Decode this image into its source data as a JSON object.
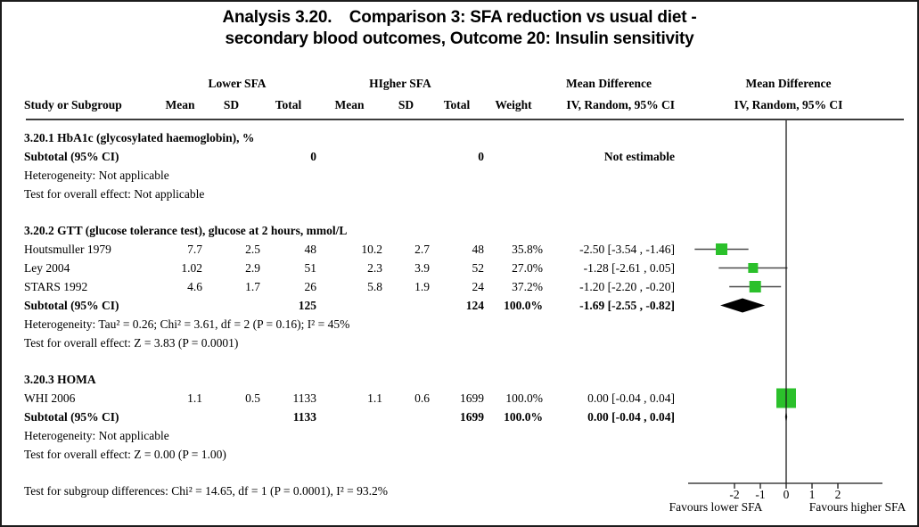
{
  "title": {
    "line1": "Analysis 3.20.   Comparison 3: SFA reduction vs usual diet -",
    "line2": "secondary blood outcomes, Outcome 20: Insulin sensitivity"
  },
  "header": {
    "group_lower": "Lower SFA",
    "group_higher": "HIgher SFA",
    "mean_diff_left": "Mean Difference",
    "mean_diff_right": "Mean Difference",
    "study": "Study or Subgroup",
    "mean1": "Mean",
    "sd1": "SD",
    "total1": "Total",
    "mean2": "Mean",
    "sd2": "SD",
    "total2": "Total",
    "weight": "Weight",
    "iv_left": "IV, Random, 95% CI",
    "iv_right": "IV, Random, 95% CI"
  },
  "table": {
    "rows": [
      {
        "type": "section",
        "text": "3.20.1 HbA1c (glycosylated haemoglobin), %"
      },
      {
        "type": "subtotal",
        "cells": [
          "Subtotal (95% CI)",
          "",
          "",
          "0",
          "",
          "",
          "0",
          "",
          "Not estimable"
        ]
      },
      {
        "type": "note",
        "text": "Heterogeneity: Not applicable"
      },
      {
        "type": "note",
        "text": "Test for overall effect: Not applicable"
      },
      {
        "type": "spacer"
      },
      {
        "type": "section",
        "text": "3.20.2 GTT (glucose tolerance test), glucose at 2 hours, mmol/L"
      },
      {
        "type": "study",
        "cells": [
          "Houtsmuller 1979",
          "7.7",
          "2.5",
          "48",
          "10.2",
          "2.7",
          "48",
          "35.8%",
          "-2.50 [-3.54 , -1.46]"
        ],
        "plot": {
          "kind": "square",
          "est": -2.5,
          "lo": -3.54,
          "hi": -1.46,
          "weight": 35.8
        }
      },
      {
        "type": "study",
        "cells": [
          "Ley 2004",
          "1.02",
          "2.9",
          "51",
          "2.3",
          "3.9",
          "52",
          "27.0%",
          "-1.28 [-2.61 , 0.05]"
        ],
        "plot": {
          "kind": "square",
          "est": -1.28,
          "lo": -2.61,
          "hi": 0.05,
          "weight": 27.0
        }
      },
      {
        "type": "study",
        "cells": [
          "STARS 1992",
          "4.6",
          "1.7",
          "26",
          "5.8",
          "1.9",
          "24",
          "37.2%",
          "-1.20 [-2.20 , -0.20]"
        ],
        "plot": {
          "kind": "square",
          "est": -1.2,
          "lo": -2.2,
          "hi": -0.2,
          "weight": 37.2
        }
      },
      {
        "type": "subtotal",
        "cells": [
          "Subtotal (95% CI)",
          "",
          "",
          "125",
          "",
          "",
          "124",
          "100.0%",
          "-1.69 [-2.55 , -0.82]"
        ],
        "plot": {
          "kind": "diamond",
          "est": -1.69,
          "lo": -2.55,
          "hi": -0.82
        }
      },
      {
        "type": "note",
        "text": "Heterogeneity: Tau² = 0.26; Chi² = 3.61, df = 2 (P = 0.16); I² = 45%"
      },
      {
        "type": "note",
        "text": "Test for overall effect: Z = 3.83 (P = 0.0001)"
      },
      {
        "type": "spacer"
      },
      {
        "type": "section",
        "text": "3.20.3 HOMA"
      },
      {
        "type": "study",
        "cells": [
          "WHI 2006",
          "1.1",
          "0.5",
          "1133",
          "1.1",
          "0.6",
          "1699",
          "100.0%",
          "0.00 [-0.04 , 0.04]"
        ],
        "plot": {
          "kind": "square",
          "est": 0.0,
          "lo": -0.04,
          "hi": 0.04,
          "weight": 100.0
        }
      },
      {
        "type": "subtotal",
        "cells": [
          "Subtotal (95% CI)",
          "",
          "",
          "1133",
          "",
          "",
          "1699",
          "100.0%",
          "0.00 [-0.04 , 0.04]"
        ],
        "plot": {
          "kind": "diamond",
          "est": 0.0,
          "lo": -0.04,
          "hi": 0.04
        }
      },
      {
        "type": "note",
        "text": "Heterogeneity: Not applicable"
      },
      {
        "type": "note",
        "text": "Test for overall effect: Z = 0.00 (P = 1.00)"
      },
      {
        "type": "spacer"
      },
      {
        "type": "note",
        "text": "Test for subgroup differences: Chi² = 14.65, df = 1 (P = 0.0001), I² = 93.2%"
      }
    ]
  },
  "axis": {
    "ticks": [
      {
        "value": -2,
        "label": "-2"
      },
      {
        "value": -1,
        "label": "-1"
      },
      {
        "value": 0,
        "label": "0"
      },
      {
        "value": 1,
        "label": "1"
      },
      {
        "value": 2,
        "label": "2"
      }
    ],
    "favours_left": "Favours lower SFA",
    "favours_right": "Favours higher SFA"
  },
  "colors": {
    "square_fill": "#2bc02b",
    "diamond_fill": "#000000",
    "ci_line": "#4a4a4a",
    "axis_line": "#1a1a1a"
  },
  "chart_data": {
    "type": "scatter",
    "variant": "forest-plot",
    "title": "Analysis 3.20. Comparison 3: SFA reduction vs usual diet - secondary blood outcomes, Outcome 20: Insulin sensitivity",
    "effect_measure": "Mean Difference, IV, Random, 95% CI",
    "xlim": [
      -3.6,
      2.6
    ],
    "x_ticks": [
      -2,
      -1,
      0,
      1,
      2
    ],
    "zero_line": 0,
    "xlabel_left": "Favours lower SFA",
    "xlabel_right": "Favours higher SFA",
    "subgroups": [
      {
        "name": "3.20.1 HbA1c (glycosylated haemoglobin), %",
        "studies": [],
        "subtotal": {
          "total_lower": 0,
          "total_higher": 0,
          "estimate_text": "Not estimable"
        },
        "heterogeneity": "Not applicable",
        "overall_effect": "Not applicable"
      },
      {
        "name": "3.20.2 GTT (glucose tolerance test), glucose at 2 hours, mmol/L",
        "studies": [
          {
            "study": "Houtsmuller 1979",
            "mean_lower": 7.7,
            "sd_lower": 2.5,
            "n_lower": 48,
            "mean_higher": 10.2,
            "sd_higher": 2.7,
            "n_higher": 48,
            "weight_pct": 35.8,
            "md": -2.5,
            "ci95": [
              -3.54,
              -1.46
            ]
          },
          {
            "study": "Ley 2004",
            "mean_lower": 1.02,
            "sd_lower": 2.9,
            "n_lower": 51,
            "mean_higher": 2.3,
            "sd_higher": 3.9,
            "n_higher": 52,
            "weight_pct": 27.0,
            "md": -1.28,
            "ci95": [
              -2.61,
              0.05
            ]
          },
          {
            "study": "STARS 1992",
            "mean_lower": 4.6,
            "sd_lower": 1.7,
            "n_lower": 26,
            "mean_higher": 5.8,
            "sd_higher": 1.9,
            "n_higher": 24,
            "weight_pct": 37.2,
            "md": -1.2,
            "ci95": [
              -2.2,
              -0.2
            ]
          }
        ],
        "subtotal": {
          "total_lower": 125,
          "total_higher": 124,
          "weight_pct": 100.0,
          "md": -1.69,
          "ci95": [
            -2.55,
            -0.82
          ]
        },
        "heterogeneity": "Tau² = 0.26; Chi² = 3.61, df = 2 (P = 0.16); I² = 45%",
        "overall_effect": "Z = 3.83 (P = 0.0001)"
      },
      {
        "name": "3.20.3 HOMA",
        "studies": [
          {
            "study": "WHI 2006",
            "mean_lower": 1.1,
            "sd_lower": 0.5,
            "n_lower": 1133,
            "mean_higher": 1.1,
            "sd_higher": 0.6,
            "n_higher": 1699,
            "weight_pct": 100.0,
            "md": 0.0,
            "ci95": [
              -0.04,
              0.04
            ]
          }
        ],
        "subtotal": {
          "total_lower": 1133,
          "total_higher": 1699,
          "weight_pct": 100.0,
          "md": 0.0,
          "ci95": [
            -0.04,
            0.04
          ]
        },
        "heterogeneity": "Not applicable",
        "overall_effect": "Z = 0.00 (P = 1.00)"
      }
    ],
    "subgroup_differences": "Chi² = 14.65, df = 1 (P = 0.0001), I² = 93.2%"
  }
}
